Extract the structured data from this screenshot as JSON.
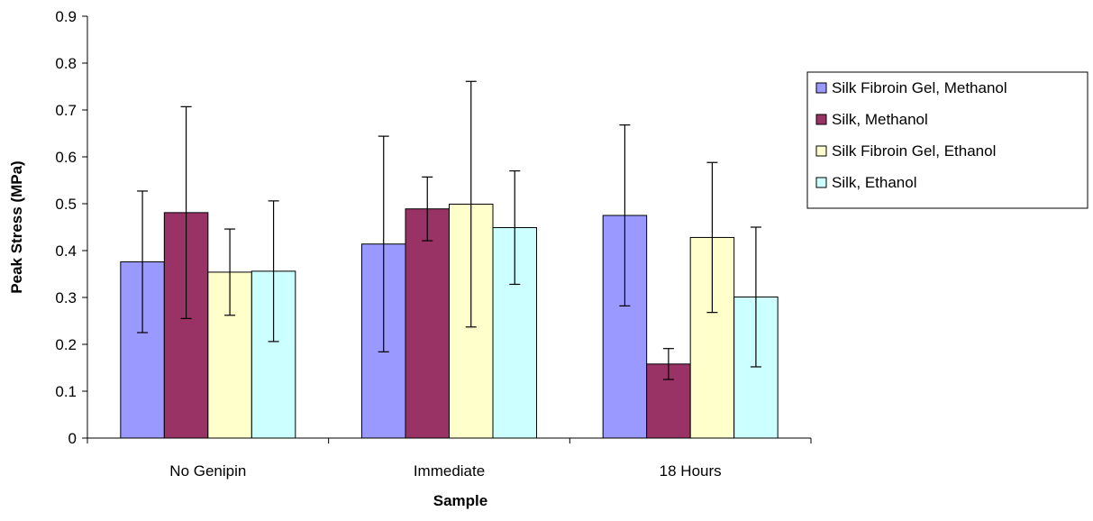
{
  "chart_data": {
    "type": "bar",
    "title": "",
    "xlabel": "Sample",
    "ylabel": "Peak Stress (MPa)",
    "ylim": [
      0,
      0.9
    ],
    "yticks": [
      "0",
      "0.1",
      "0.2",
      "0.3",
      "0.4",
      "0.5",
      "0.6",
      "0.7",
      "0.8",
      "0.9"
    ],
    "categories": [
      "No Genipin",
      "Immediate",
      "18 Hours"
    ],
    "grid": false,
    "legend_position": "right",
    "series": [
      {
        "name": "Silk Fibroin Gel, Methanol",
        "color": "#9999ff",
        "values": [
          0.376,
          0.414,
          0.475
        ],
        "error": [
          0.151,
          0.23,
          0.193
        ]
      },
      {
        "name": "Silk, Methanol",
        "color": "#993366",
        "values": [
          0.481,
          0.489,
          0.158
        ],
        "error": [
          0.226,
          0.068,
          0.033
        ]
      },
      {
        "name": "Silk Fibroin Gel, Ethanol",
        "color": "#ffffcc",
        "values": [
          0.354,
          0.499,
          0.428
        ],
        "error": [
          0.092,
          0.262,
          0.16
        ]
      },
      {
        "name": "Silk, Ethanol",
        "color": "#ccffff",
        "values": [
          0.356,
          0.449,
          0.301
        ],
        "error": [
          0.15,
          0.121,
          0.149
        ]
      }
    ]
  }
}
